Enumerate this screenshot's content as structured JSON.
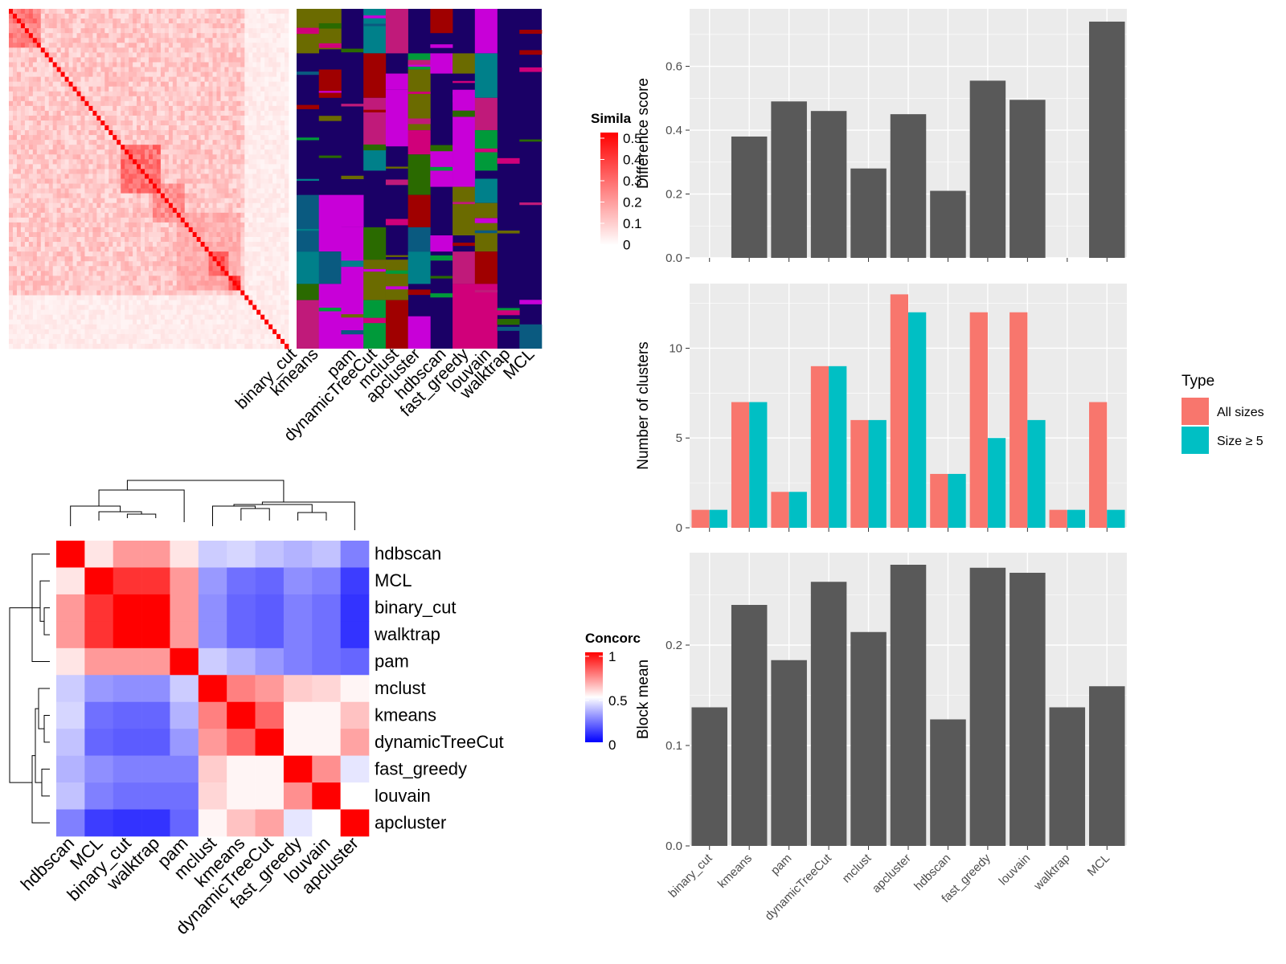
{
  "colors": {
    "similarity_low": "#ffffff",
    "similarity_high": "#ff0000",
    "concordance_low": "#0000ff",
    "concordance_mid": "#ffffff",
    "concordance_high": "#ff0000",
    "panel_bg": "#ebebeb",
    "bar_dark": "#595959",
    "all_sizes": "#f8766d",
    "size_ge5": "#00bfc4",
    "cluster_bg": "#1a0066",
    "cluster_palette": [
      "#6b6b00",
      "#00808a",
      "#c01a7a",
      "#a00000",
      "#009a3a",
      "#c800d8",
      "#0a5a80",
      "#2a6a00",
      "#d0007a"
    ]
  },
  "top_heatmap": {
    "legend_title": "Simila",
    "legend_ticks": [
      "0.5",
      "0.4",
      "0.3",
      "0.2",
      "0.1",
      "0"
    ],
    "methods": [
      "binary_cut",
      "kmeans",
      "pam",
      "dynamicTreeCut",
      "mclust",
      "apcluster",
      "hdbscan",
      "fast_greedy",
      "louvain",
      "walktrap",
      "MCL"
    ]
  },
  "concordance_heatmap": {
    "legend_title": "Concorc",
    "legend_ticks": [
      "1",
      "0.5",
      "0"
    ],
    "rows": [
      "hdbscan",
      "MCL",
      "binary_cut",
      "walktrap",
      "pam",
      "mclust",
      "kmeans",
      "dynamicTreeCut",
      "fast_greedy",
      "louvain",
      "apcluster"
    ],
    "cols": [
      "hdbscan",
      "MCL",
      "binary_cut",
      "walktrap",
      "pam",
      "mclust",
      "kmeans",
      "dynamicTreeCut",
      "fast_greedy",
      "louvain",
      "apcluster"
    ],
    "values": [
      [
        1.0,
        0.55,
        0.7,
        0.7,
        0.55,
        0.4,
        0.42,
        0.38,
        0.35,
        0.38,
        0.25
      ],
      [
        0.55,
        1.0,
        0.9,
        0.9,
        0.7,
        0.3,
        0.22,
        0.2,
        0.28,
        0.25,
        0.12
      ],
      [
        0.7,
        0.9,
        1.0,
        1.0,
        0.7,
        0.28,
        0.2,
        0.18,
        0.25,
        0.22,
        0.1
      ],
      [
        0.7,
        0.9,
        1.0,
        1.0,
        0.7,
        0.28,
        0.2,
        0.18,
        0.25,
        0.22,
        0.1
      ],
      [
        0.55,
        0.7,
        0.7,
        0.7,
        1.0,
        0.4,
        0.35,
        0.3,
        0.25,
        0.22,
        0.2
      ],
      [
        0.4,
        0.3,
        0.28,
        0.28,
        0.4,
        1.0,
        0.75,
        0.7,
        0.6,
        0.58,
        0.52
      ],
      [
        0.42,
        0.22,
        0.2,
        0.2,
        0.35,
        0.75,
        1.0,
        0.8,
        0.52,
        0.52,
        0.62
      ],
      [
        0.38,
        0.2,
        0.18,
        0.18,
        0.3,
        0.7,
        0.8,
        1.0,
        0.52,
        0.52,
        0.68
      ],
      [
        0.35,
        0.28,
        0.25,
        0.25,
        0.25,
        0.6,
        0.52,
        0.52,
        1.0,
        0.72,
        0.45
      ],
      [
        0.38,
        0.25,
        0.22,
        0.22,
        0.22,
        0.58,
        0.52,
        0.52,
        0.72,
        1.0,
        0.5
      ],
      [
        0.25,
        0.12,
        0.1,
        0.1,
        0.2,
        0.52,
        0.62,
        0.68,
        0.45,
        0.5,
        1.0
      ]
    ]
  },
  "chart_data": [
    {
      "type": "bar",
      "categories": [
        "binary_cut",
        "kmeans",
        "pam",
        "dynamicTreeCut",
        "mclust",
        "apcluster",
        "hdbscan",
        "fast_greedy",
        "louvain",
        "walktrap",
        "MCL"
      ],
      "values": [
        0,
        0.38,
        0.49,
        0.46,
        0.28,
        0.45,
        0.21,
        0.555,
        0.495,
        0,
        0.74
      ],
      "ylabel": "Difference score",
      "ylim": [
        0,
        0.78
      ],
      "yticks": [
        "0.0",
        "0.2",
        "0.4",
        "0.6"
      ]
    },
    {
      "type": "bar",
      "categories": [
        "binary_cut",
        "kmeans",
        "pam",
        "dynamicTreeCut",
        "mclust",
        "apcluster",
        "hdbscan",
        "fast_greedy",
        "louvain",
        "walktrap",
        "MCL"
      ],
      "series": [
        {
          "name": "All sizes",
          "values": [
            1,
            7,
            2,
            9,
            6,
            13,
            3,
            12,
            12,
            1,
            7
          ]
        },
        {
          "name": "Size ≥ 5",
          "values": [
            1,
            7,
            2,
            9,
            6,
            12,
            3,
            5,
            6,
            1,
            1
          ]
        }
      ],
      "ylabel": "Number of clusters",
      "ylim": [
        0,
        13.6
      ],
      "yticks": [
        "0",
        "5",
        "10"
      ],
      "legend": {
        "title": "Type",
        "placement": "right"
      }
    },
    {
      "type": "bar",
      "categories": [
        "binary_cut",
        "kmeans",
        "pam",
        "dynamicTreeCut",
        "mclust",
        "apcluster",
        "hdbscan",
        "fast_greedy",
        "louvain",
        "walktrap",
        "MCL"
      ],
      "values": [
        0.138,
        0.24,
        0.185,
        0.263,
        0.213,
        0.28,
        0.126,
        0.277,
        0.272,
        0.138,
        0.159
      ],
      "ylabel": "Block mean",
      "ylim": [
        0,
        0.292
      ],
      "yticks": [
        "0.0",
        "0.1",
        "0.2"
      ]
    }
  ]
}
